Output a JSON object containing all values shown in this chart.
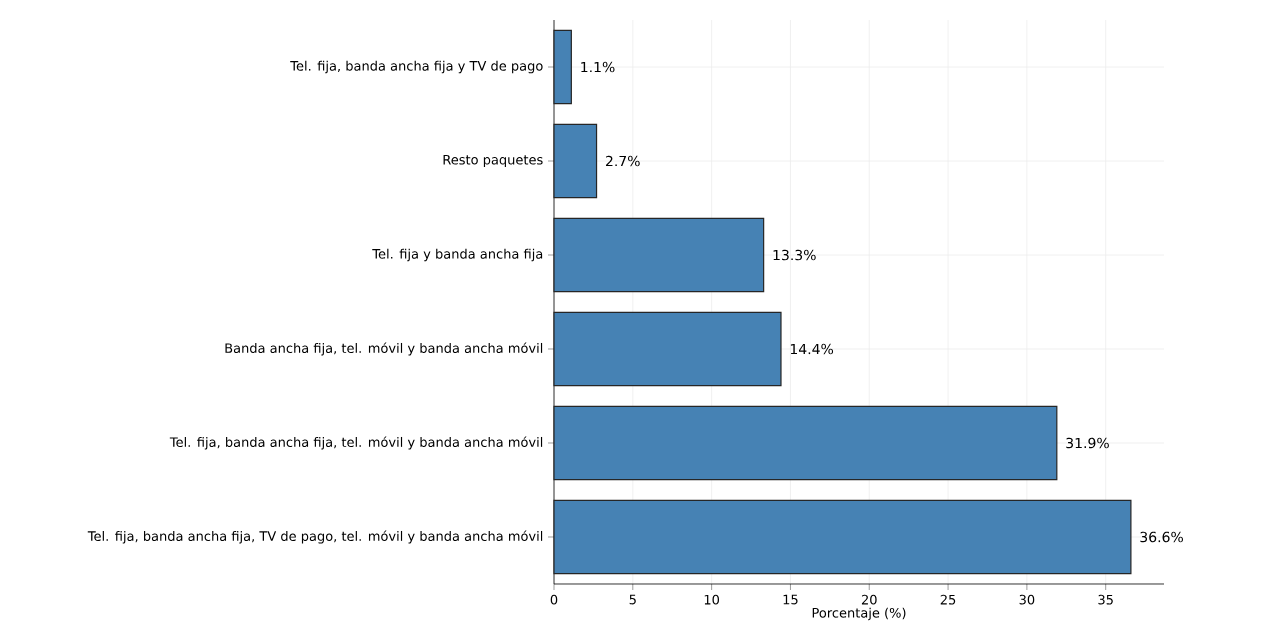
{
  "chart_data": {
    "type": "bar",
    "orientation": "horizontal",
    "xlabel": "Porcentaje (%)",
    "categories": [
      "Tel. fija, banda ancha fija y TV de pago",
      "Resto paquetes",
      "Tel. fija y banda ancha fija",
      "Banda ancha fija, tel. móvil y banda ancha móvil",
      "Tel. fija, banda ancha fija, tel. móvil y banda ancha móvil",
      "Tel. fija, banda ancha fija, TV de pago, tel. móvil y banda ancha móvil"
    ],
    "values": [
      1.1,
      2.7,
      13.3,
      14.4,
      31.9,
      36.6
    ],
    "value_labels": [
      "1.1%",
      "2.7%",
      "13.3%",
      "14.4%",
      "31.9%",
      "36.6%"
    ],
    "color": "#4682b4",
    "xlim": [
      0,
      38.7
    ],
    "xticks": [
      0,
      5,
      10,
      15,
      20,
      25,
      30,
      35
    ],
    "grid": true
  }
}
